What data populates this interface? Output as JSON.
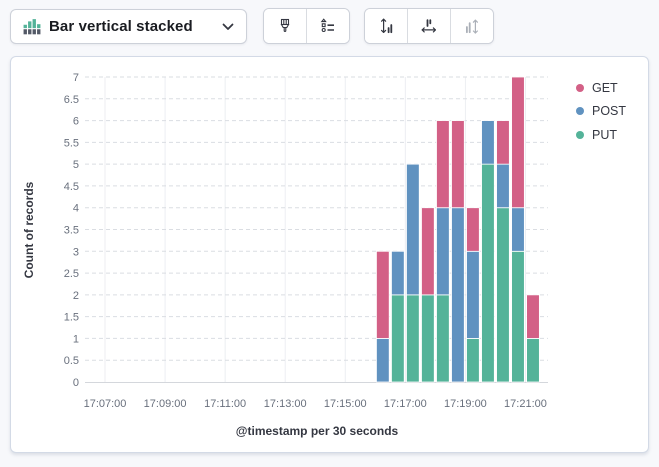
{
  "toolbar": {
    "chart_type_label": "Bar vertical stacked",
    "icons": {
      "chart_type": "bar-vertical-stacked-icon",
      "dropdown": "chevron-down-icon",
      "style": "brush-icon",
      "legend": "legend-list-icon",
      "left_axis": "fit-vertical-arrow-icon",
      "bottom_axis": "fit-horizontal-arrow-icon",
      "right_axis": "fit-right-axis-arrow-icon"
    }
  },
  "colors": {
    "get": "#D36086",
    "post": "#6092C0",
    "put": "#54B399",
    "icon_green": "#54B399",
    "icon_gray": "#535966",
    "panel_border": "#d3dae6",
    "axis_text": "#69707d",
    "title_text": "#343741"
  },
  "chart_data": {
    "type": "bar",
    "stacked": true,
    "title": "",
    "xlabel": "@timestamp per 30 seconds",
    "ylabel": "Count of records",
    "ylim": [
      0,
      7
    ],
    "y_tick_step": 0.5,
    "grid": true,
    "legend_position": "right",
    "x_domain": [
      "17:06:20",
      "17:21:45"
    ],
    "x_ticks": [
      "17:07:00",
      "17:09:00",
      "17:11:00",
      "17:13:00",
      "17:15:00",
      "17:17:00",
      "17:19:00",
      "17:21:00"
    ],
    "categories": [
      "17:16:00",
      "17:16:30",
      "17:17:00",
      "17:17:30",
      "17:18:00",
      "17:18:30",
      "17:19:00",
      "17:19:30",
      "17:20:00",
      "17:20:30",
      "17:21:00"
    ],
    "bucket_seconds": 30,
    "stack_order": [
      "PUT",
      "POST",
      "GET"
    ],
    "series": [
      {
        "name": "GET",
        "color": "#D36086",
        "values": [
          2,
          0,
          0,
          2,
          2,
          2,
          1,
          0,
          1,
          3,
          1
        ]
      },
      {
        "name": "POST",
        "color": "#6092C0",
        "values": [
          1,
          1,
          3,
          0,
          2,
          4,
          2,
          1,
          1,
          1,
          0
        ]
      },
      {
        "name": "PUT",
        "color": "#54B399",
        "values": [
          0,
          2,
          2,
          2,
          2,
          0,
          1,
          5,
          4,
          3,
          1
        ]
      }
    ]
  }
}
